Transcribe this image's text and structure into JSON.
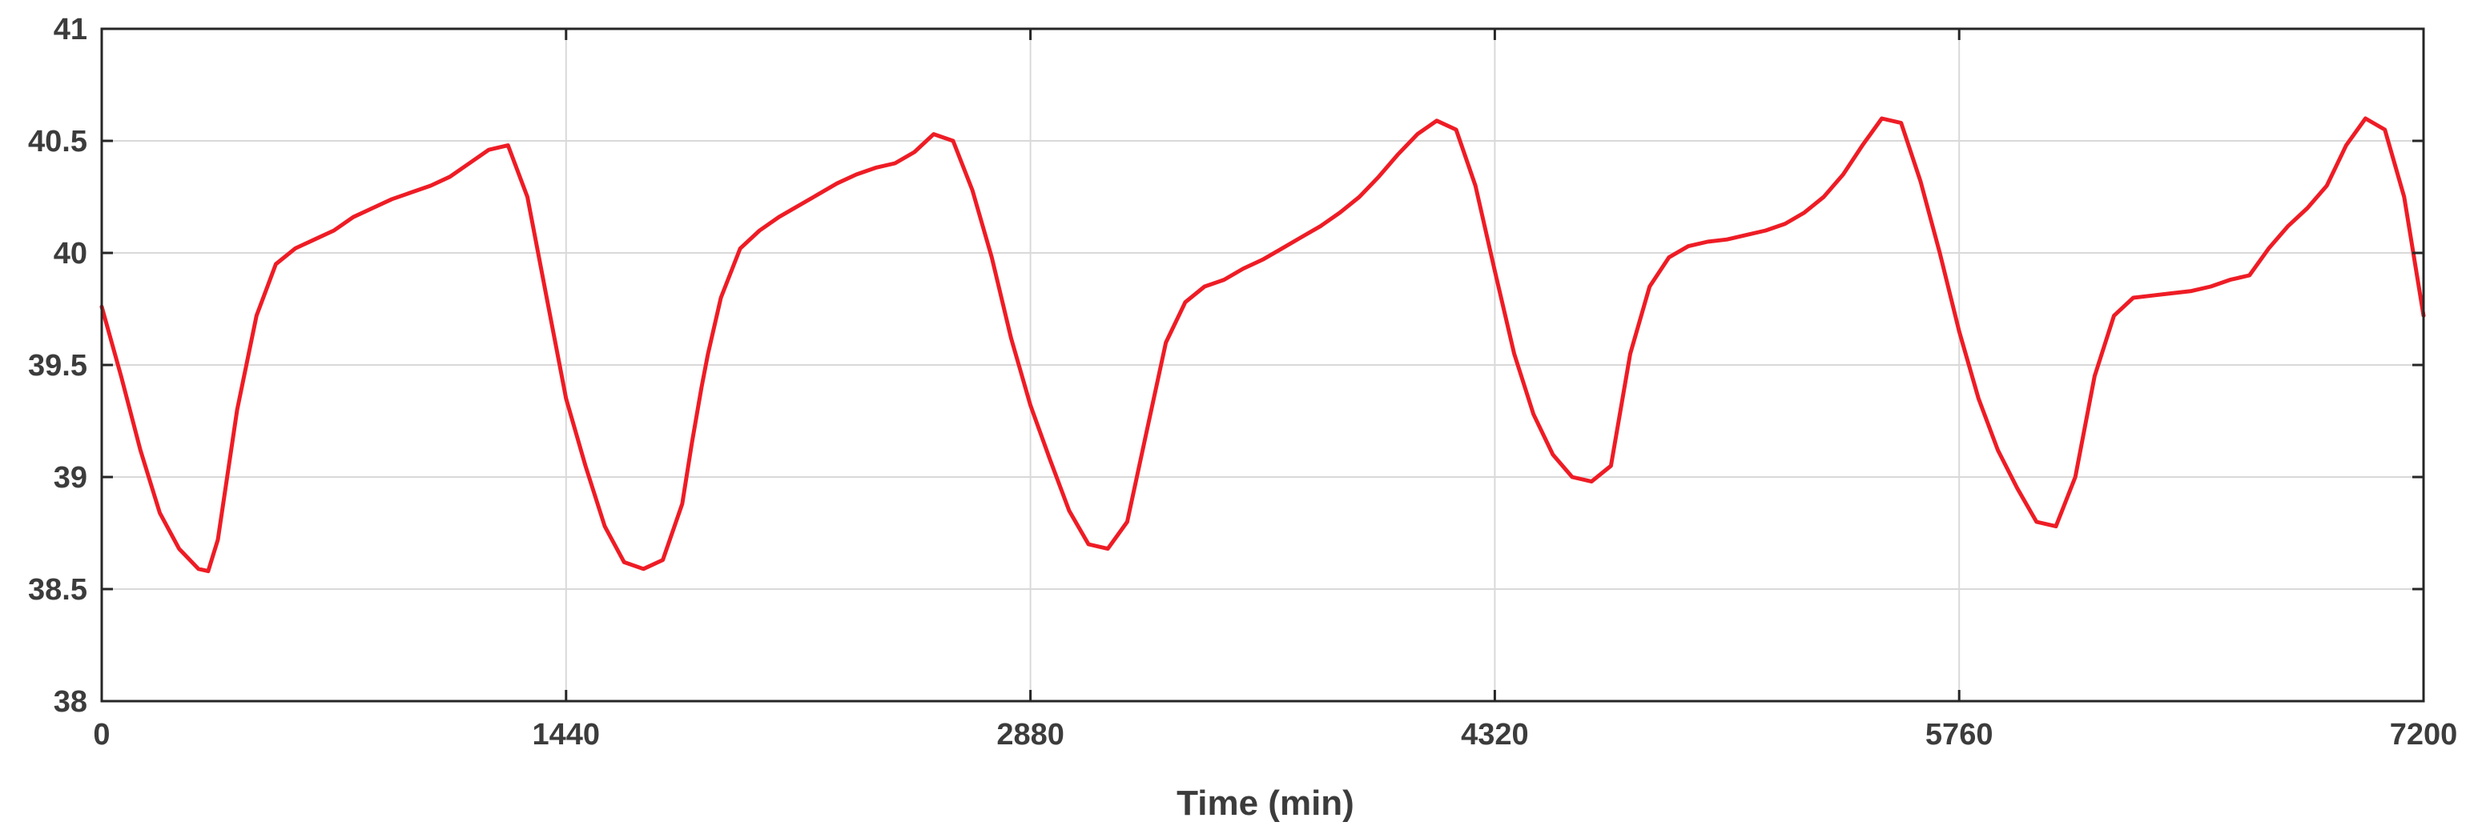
{
  "chart_data": {
    "type": "line",
    "title": "",
    "xlabel": "Time (min)",
    "ylabel": "",
    "xlim": [
      0,
      7200
    ],
    "ylim": [
      38,
      41
    ],
    "xticks": [
      0,
      1440,
      2880,
      4320,
      5760,
      7200
    ],
    "xtick_labels": [
      "0",
      "1440",
      "2880",
      "4320",
      "5760",
      "7200"
    ],
    "yticks": [
      38,
      38.5,
      39,
      39.5,
      40,
      40.5,
      41
    ],
    "ytick_labels": [
      "38",
      "38.5",
      "39",
      "39.5",
      "40",
      "40.5",
      "41"
    ],
    "grid": true,
    "legend": "none",
    "series": [
      {
        "color": "#ee1c25",
        "x": [
          0,
          60,
          120,
          180,
          240,
          300,
          330,
          360,
          420,
          480,
          540,
          600,
          660,
          720,
          780,
          840,
          900,
          960,
          1020,
          1080,
          1140,
          1200,
          1260,
          1320,
          1380,
          1440,
          1500,
          1560,
          1620,
          1680,
          1740,
          1800,
          1830,
          1860,
          1880,
          1920,
          1980,
          2040,
          2100,
          2160,
          2220,
          2280,
          2340,
          2400,
          2460,
          2520,
          2580,
          2640,
          2700,
          2760,
          2820,
          2880,
          2940,
          3000,
          3060,
          3120,
          3180,
          3240,
          3300,
          3360,
          3420,
          3480,
          3540,
          3600,
          3660,
          3720,
          3780,
          3840,
          3900,
          3960,
          4020,
          4080,
          4140,
          4200,
          4260,
          4320,
          4380,
          4440,
          4500,
          4560,
          4620,
          4680,
          4740,
          4800,
          4860,
          4920,
          4980,
          5040,
          5100,
          5160,
          5220,
          5280,
          5340,
          5400,
          5460,
          5520,
          5580,
          5640,
          5700,
          5760,
          5820,
          5880,
          5940,
          6000,
          6060,
          6120,
          6180,
          6240,
          6300,
          6360,
          6420,
          6480,
          6540,
          6600,
          6660,
          6720,
          6780,
          6840,
          6900,
          6960,
          7020,
          7080,
          7140,
          7200
        ],
        "y": [
          39.76,
          39.45,
          39.12,
          38.84,
          38.68,
          38.59,
          38.58,
          38.72,
          39.3,
          39.72,
          39.95,
          40.02,
          40.06,
          40.1,
          40.16,
          40.2,
          40.24,
          40.27,
          40.3,
          40.34,
          40.4,
          40.46,
          40.48,
          40.25,
          39.8,
          39.35,
          39.05,
          38.78,
          38.62,
          38.59,
          38.63,
          38.88,
          39.15,
          39.4,
          39.55,
          39.8,
          40.02,
          40.1,
          40.16,
          40.21,
          40.26,
          40.31,
          40.35,
          40.38,
          40.4,
          40.45,
          40.53,
          40.5,
          40.28,
          39.98,
          39.62,
          39.32,
          39.08,
          38.85,
          38.7,
          38.68,
          38.8,
          39.2,
          39.6,
          39.78,
          39.85,
          39.88,
          39.93,
          39.97,
          40.02,
          40.07,
          40.12,
          40.18,
          40.25,
          40.34,
          40.44,
          40.53,
          40.59,
          40.55,
          40.3,
          39.92,
          39.55,
          39.28,
          39.1,
          39.0,
          38.98,
          39.05,
          39.55,
          39.85,
          39.98,
          40.03,
          40.05,
          40.06,
          40.08,
          40.1,
          40.13,
          40.18,
          40.25,
          40.35,
          40.48,
          40.6,
          40.58,
          40.32,
          40.0,
          39.65,
          39.35,
          39.12,
          38.95,
          38.8,
          38.78,
          39.0,
          39.45,
          39.72,
          39.8,
          39.81,
          39.82,
          39.83,
          39.85,
          39.88,
          39.9,
          40.02,
          40.12,
          40.2,
          40.3,
          40.48,
          40.6,
          40.55,
          40.25,
          39.72
        ]
      }
    ]
  }
}
